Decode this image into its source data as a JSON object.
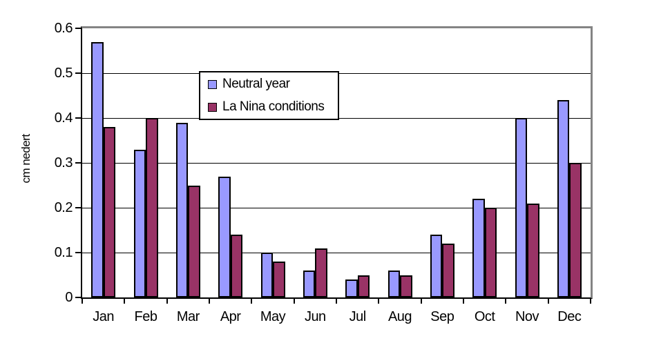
{
  "chart_data": {
    "type": "bar",
    "title": "",
    "xlabel": "",
    "ylabel": "cm nedert",
    "ylim": [
      0,
      0.6
    ],
    "yticks": [
      0,
      0.1,
      0.2,
      0.3,
      0.4,
      0.5,
      0.6
    ],
    "grid": "horizontal",
    "legend_position": "inside-upper-center",
    "categories": [
      "Jan",
      "Feb",
      "Mar",
      "Apr",
      "May",
      "Jun",
      "Jul",
      "Aug",
      "Sep",
      "Oct",
      "Nov",
      "Dec"
    ],
    "series": [
      {
        "name": "Neutral year",
        "color": "#9999FF",
        "values": [
          0.57,
          0.33,
          0.39,
          0.27,
          0.1,
          0.06,
          0.04,
          0.06,
          0.14,
          0.22,
          0.4,
          0.44
        ]
      },
      {
        "name": "La Nina conditions",
        "color": "#993366",
        "values": [
          0.38,
          0.4,
          0.25,
          0.14,
          0.08,
          0.11,
          0.05,
          0.05,
          0.12,
          0.2,
          0.21,
          0.3
        ]
      }
    ],
    "colors": {
      "bar_border": "#000000",
      "gridline": "#000000",
      "plot_border": "#848484",
      "axis": "#000000",
      "background": "#FFFFFF"
    }
  }
}
